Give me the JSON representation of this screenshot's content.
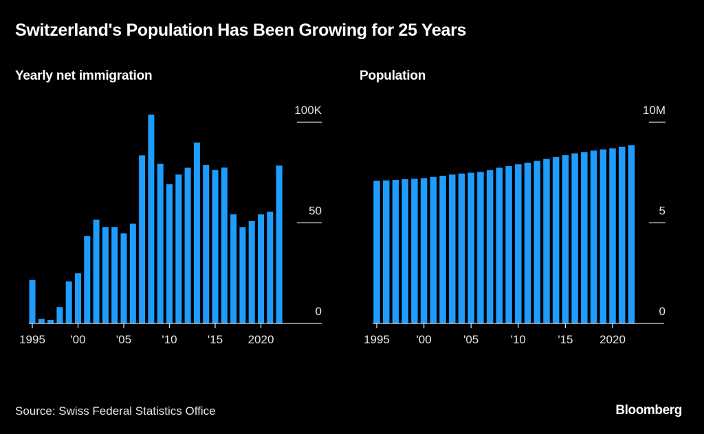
{
  "title": "Switzerland's Population Has Been Growing for 25 Years",
  "source": "Source: Swiss Federal Statistics Office",
  "brand": "Bloomberg",
  "colors": {
    "bar": "#1e9dff",
    "background": "#000000",
    "axis": "#d9d9d9",
    "text": "#ffffff"
  },
  "chart_data": [
    {
      "type": "bar",
      "title": "Yearly net immigration",
      "xlabel": "",
      "ylabel": "",
      "ylim": [
        0,
        100
      ],
      "y_unit": "thousands",
      "y_ticks": [
        {
          "value": 0,
          "label": "0"
        },
        {
          "value": 50,
          "label": "50"
        },
        {
          "value": 100,
          "label": "100K"
        }
      ],
      "x_ticks": [
        {
          "year": 1995,
          "label": "1995"
        },
        {
          "year": 2000,
          "label": "'00"
        },
        {
          "year": 2005,
          "label": "'05"
        },
        {
          "year": 2010,
          "label": "'10"
        },
        {
          "year": 2015,
          "label": "'15"
        },
        {
          "year": 2020,
          "label": "2020"
        }
      ],
      "grid": false,
      "categories": [
        1995,
        1996,
        1997,
        1998,
        1999,
        2000,
        2001,
        2002,
        2003,
        2004,
        2005,
        2006,
        2007,
        2008,
        2009,
        2010,
        2011,
        2012,
        2013,
        2014,
        2015,
        2016,
        2017,
        2018,
        2019,
        2020,
        2021,
        2022
      ],
      "values": [
        21.6,
        2.3,
        1.7,
        8.1,
        20.9,
        24.9,
        43.4,
        51.6,
        47.9,
        47.9,
        44.8,
        49.6,
        83.5,
        103.8,
        79.3,
        69.2,
        74.0,
        77.4,
        89.9,
        78.8,
        76.3,
        77.5,
        54.2,
        47.8,
        50.9,
        54.2,
        55.5,
        78.5
      ]
    },
    {
      "type": "bar",
      "title": "Population",
      "xlabel": "",
      "ylabel": "",
      "ylim": [
        0,
        10
      ],
      "y_unit": "millions",
      "y_ticks": [
        {
          "value": 0,
          "label": "0"
        },
        {
          "value": 5,
          "label": "5"
        },
        {
          "value": 10,
          "label": "10M"
        }
      ],
      "x_ticks": [
        {
          "year": 1995,
          "label": "1995"
        },
        {
          "year": 2000,
          "label": "'00"
        },
        {
          "year": 2005,
          "label": "'05"
        },
        {
          "year": 2010,
          "label": "'10"
        },
        {
          "year": 2015,
          "label": "'15"
        },
        {
          "year": 2020,
          "label": "2020"
        }
      ],
      "grid": false,
      "categories": [
        1995,
        1996,
        1997,
        1998,
        1999,
        2000,
        2001,
        2002,
        2003,
        2004,
        2005,
        2006,
        2007,
        2008,
        2009,
        2010,
        2011,
        2012,
        2013,
        2014,
        2015,
        2016,
        2017,
        2018,
        2019,
        2020,
        2021,
        2022
      ],
      "values": [
        7.09,
        7.11,
        7.13,
        7.17,
        7.19,
        7.22,
        7.28,
        7.34,
        7.4,
        7.45,
        7.49,
        7.53,
        7.62,
        7.74,
        7.82,
        7.91,
        7.99,
        8.08,
        8.18,
        8.27,
        8.36,
        8.45,
        8.52,
        8.59,
        8.65,
        8.7,
        8.78,
        8.86
      ]
    }
  ]
}
